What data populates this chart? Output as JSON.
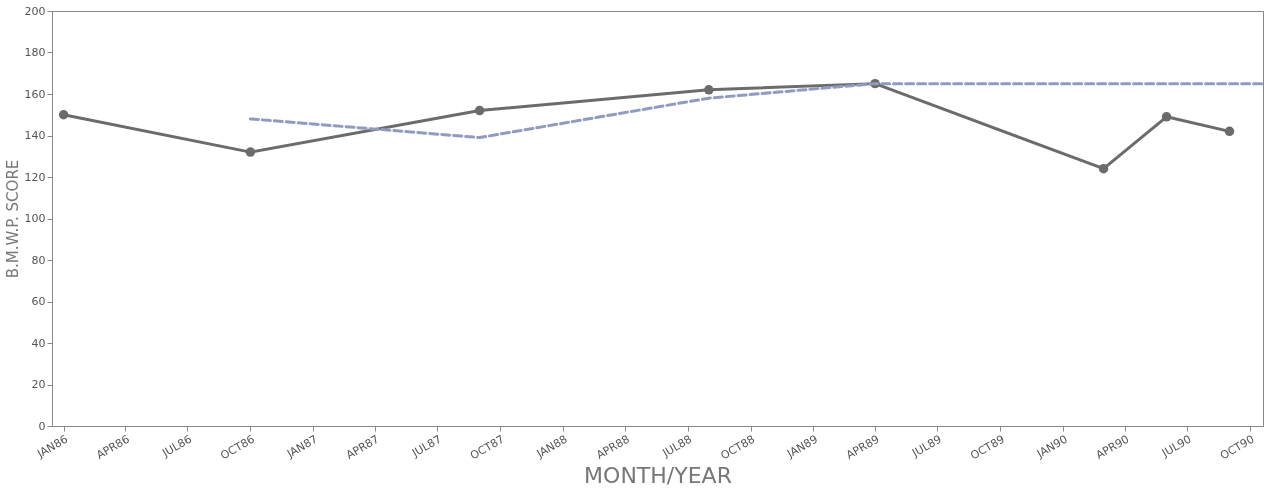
{
  "chart_data": {
    "type": "line",
    "xlabel": "MONTH/YEAR",
    "ylabel": "B.M.W.P. SCORE",
    "xlim": [
      "1985-12-15",
      "1990-10-20"
    ],
    "ylim": [
      0,
      200
    ],
    "yticks": [
      0,
      20,
      40,
      60,
      80,
      100,
      120,
      140,
      160,
      180,
      200
    ],
    "xticks": [
      {
        "value": "1986-01",
        "label": "JAN86"
      },
      {
        "value": "1986-04",
        "label": "APR86"
      },
      {
        "value": "1986-07",
        "label": "JUL86"
      },
      {
        "value": "1986-10",
        "label": "OCT86"
      },
      {
        "value": "1987-01",
        "label": "JAN87"
      },
      {
        "value": "1987-04",
        "label": "APR87"
      },
      {
        "value": "1987-07",
        "label": "JUL87"
      },
      {
        "value": "1987-10",
        "label": "OCT87"
      },
      {
        "value": "1988-01",
        "label": "JAN88"
      },
      {
        "value": "1988-04",
        "label": "APR88"
      },
      {
        "value": "1988-07",
        "label": "JUL88"
      },
      {
        "value": "1988-10",
        "label": "OCT88"
      },
      {
        "value": "1989-01",
        "label": "JAN89"
      },
      {
        "value": "1989-04",
        "label": "APR89"
      },
      {
        "value": "1989-07",
        "label": "JUL89"
      },
      {
        "value": "1989-10",
        "label": "OCT89"
      },
      {
        "value": "1990-01",
        "label": "JAN90"
      },
      {
        "value": "1990-04",
        "label": "APR90"
      },
      {
        "value": "1990-07",
        "label": "JUL90"
      },
      {
        "value": "1990-10",
        "label": "OCT90"
      }
    ],
    "grid": false,
    "marker": "circle",
    "line_style": "solid",
    "series": [
      {
        "color": "#6b6b6b",
        "x": [
          "1986-01",
          "1986-10",
          "1987-09",
          "1988-08",
          "1989-04",
          "1990-03",
          "1990-06",
          "1990-09"
        ],
        "values": [
          150,
          132,
          152,
          162,
          165,
          124,
          149,
          142
        ]
      },
      {
        "color": "#8f9bbf",
        "line_style": "dashed",
        "marker": "none",
        "x": [
          "1986-10",
          "1987-09",
          "1988-08",
          "1989-04",
          "1990-10-20"
        ],
        "values": [
          148,
          139,
          158,
          165,
          165
        ]
      }
    ]
  }
}
